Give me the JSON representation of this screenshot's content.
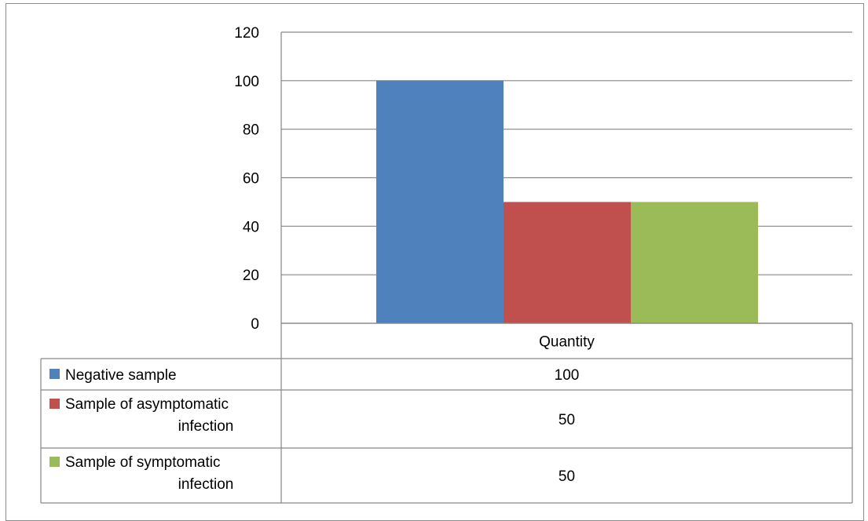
{
  "chart_data": {
    "type": "bar",
    "categories": [
      "Quantity"
    ],
    "series": [
      {
        "name": "Negative sample",
        "values": [
          100
        ],
        "color": "#4F81BD"
      },
      {
        "name": "Sample of asymptomatic infection",
        "values": [
          50
        ],
        "color": "#C0504D"
      },
      {
        "name": "Sample of symptomatic infection",
        "values": [
          50
        ],
        "color": "#9BBB59"
      }
    ],
    "ylim": [
      0,
      120
    ],
    "yticks": [
      0,
      20,
      40,
      60,
      80,
      100,
      120
    ],
    "grid": true,
    "legend": "data-table",
    "data_table": true
  }
}
